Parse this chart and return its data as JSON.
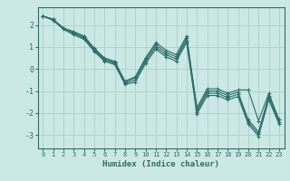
{
  "xlabel": "Humidex (Indice chaleur)",
  "xlim": [
    -0.5,
    23.5
  ],
  "ylim": [
    -3.6,
    2.8
  ],
  "yticks": [
    -3,
    -2,
    -1,
    0,
    1,
    2
  ],
  "xticks": [
    0,
    1,
    2,
    3,
    4,
    5,
    6,
    7,
    8,
    9,
    10,
    11,
    12,
    13,
    14,
    15,
    16,
    17,
    18,
    19,
    20,
    21,
    22,
    23
  ],
  "background_color": "#cce8e5",
  "grid_color": "#aacfcc",
  "line_color": "#2a6e6a",
  "lines": [
    [
      2.4,
      2.25,
      1.85,
      1.7,
      1.5,
      0.95,
      0.5,
      0.35,
      -0.55,
      -0.35,
      0.5,
      1.2,
      0.85,
      0.65,
      1.5,
      -1.75,
      -0.9,
      -0.9,
      -1.1,
      -0.95,
      -0.95,
      -2.35,
      -1.1,
      -2.3
    ],
    [
      2.4,
      2.25,
      1.85,
      1.65,
      1.45,
      0.9,
      0.45,
      0.3,
      -0.6,
      -0.4,
      0.45,
      1.1,
      0.75,
      0.55,
      1.4,
      -1.85,
      -1.0,
      -1.0,
      -1.2,
      -1.05,
      -2.3,
      -2.85,
      -1.2,
      -2.3
    ],
    [
      2.4,
      2.25,
      1.85,
      1.6,
      1.4,
      0.85,
      0.4,
      0.25,
      -0.65,
      -0.5,
      0.35,
      1.0,
      0.65,
      0.45,
      1.3,
      -1.95,
      -1.1,
      -1.1,
      -1.3,
      -1.15,
      -2.4,
      -2.95,
      -1.3,
      -2.4
    ],
    [
      2.4,
      2.2,
      1.8,
      1.55,
      1.35,
      0.8,
      0.35,
      0.2,
      -0.7,
      -0.6,
      0.25,
      0.9,
      0.55,
      0.35,
      1.2,
      -2.05,
      -1.2,
      -1.2,
      -1.4,
      -1.25,
      -2.5,
      -3.05,
      -1.4,
      -2.5
    ]
  ]
}
